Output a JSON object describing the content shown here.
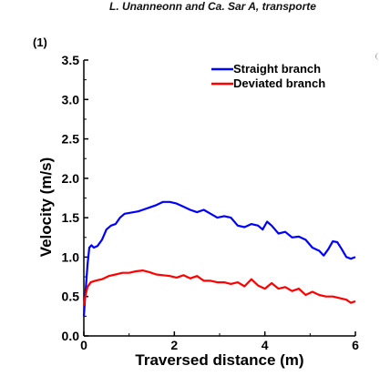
{
  "page": {
    "header_text": "L. Unanneonn and Ca. Sar A, transporte",
    "panel_label": "(1)"
  },
  "chart_data": {
    "type": "line",
    "title": "",
    "xlabel": "Traversed distance (m)",
    "ylabel": "Velocity (m/s)",
    "xlim": [
      0,
      6
    ],
    "ylim": [
      0,
      3.5
    ],
    "xticks": [
      0,
      2,
      4,
      6
    ],
    "yticks": [
      0.0,
      0.5,
      1.0,
      1.5,
      2.0,
      2.5,
      3.0,
      3.5
    ],
    "xtick_labels": [
      "0",
      "2",
      "4",
      "6"
    ],
    "ytick_labels": [
      "0.0",
      "0.5",
      "1.0",
      "1.5",
      "2.0",
      "2.5",
      "3.0",
      "3.5"
    ],
    "grid": false,
    "legend_position": "top-right",
    "series": [
      {
        "name": "Straight branch",
        "color": "#0000ff",
        "x": [
          0.0,
          0.03,
          0.08,
          0.12,
          0.17,
          0.22,
          0.3,
          0.4,
          0.5,
          0.6,
          0.7,
          0.8,
          0.9,
          1.0,
          1.1,
          1.2,
          1.3,
          1.45,
          1.6,
          1.75,
          1.9,
          2.05,
          2.2,
          2.35,
          2.5,
          2.65,
          2.8,
          2.95,
          3.1,
          3.25,
          3.4,
          3.55,
          3.7,
          3.85,
          3.95,
          4.05,
          4.15,
          4.3,
          4.45,
          4.6,
          4.75,
          4.9,
          5.05,
          5.2,
          5.3,
          5.4,
          5.5,
          5.6,
          5.7,
          5.8,
          5.9,
          6.0
        ],
        "y": [
          0.25,
          0.5,
          0.9,
          1.12,
          1.15,
          1.12,
          1.14,
          1.22,
          1.35,
          1.4,
          1.42,
          1.5,
          1.55,
          1.56,
          1.57,
          1.58,
          1.6,
          1.63,
          1.66,
          1.7,
          1.7,
          1.68,
          1.64,
          1.6,
          1.57,
          1.6,
          1.55,
          1.5,
          1.52,
          1.5,
          1.4,
          1.38,
          1.42,
          1.4,
          1.35,
          1.45,
          1.4,
          1.3,
          1.32,
          1.25,
          1.26,
          1.22,
          1.12,
          1.08,
          1.02,
          1.1,
          1.2,
          1.19,
          1.1,
          1.0,
          0.98,
          1.0
        ]
      },
      {
        "name": "Deviated branch",
        "color": "#ff0000",
        "x": [
          0.0,
          0.03,
          0.08,
          0.15,
          0.25,
          0.4,
          0.55,
          0.7,
          0.85,
          1.0,
          1.15,
          1.3,
          1.45,
          1.6,
          1.75,
          1.9,
          2.05,
          2.2,
          2.35,
          2.5,
          2.65,
          2.8,
          2.95,
          3.1,
          3.25,
          3.4,
          3.55,
          3.7,
          3.85,
          4.0,
          4.15,
          4.3,
          4.45,
          4.6,
          4.75,
          4.9,
          5.05,
          5.2,
          5.35,
          5.5,
          5.65,
          5.8,
          5.9,
          6.0
        ],
        "y": [
          0.38,
          0.5,
          0.62,
          0.68,
          0.7,
          0.72,
          0.76,
          0.78,
          0.8,
          0.8,
          0.82,
          0.83,
          0.81,
          0.78,
          0.77,
          0.76,
          0.74,
          0.77,
          0.73,
          0.76,
          0.7,
          0.7,
          0.68,
          0.68,
          0.66,
          0.68,
          0.63,
          0.72,
          0.64,
          0.6,
          0.67,
          0.6,
          0.62,
          0.57,
          0.6,
          0.52,
          0.56,
          0.52,
          0.5,
          0.5,
          0.48,
          0.46,
          0.42,
          0.44
        ]
      }
    ]
  }
}
